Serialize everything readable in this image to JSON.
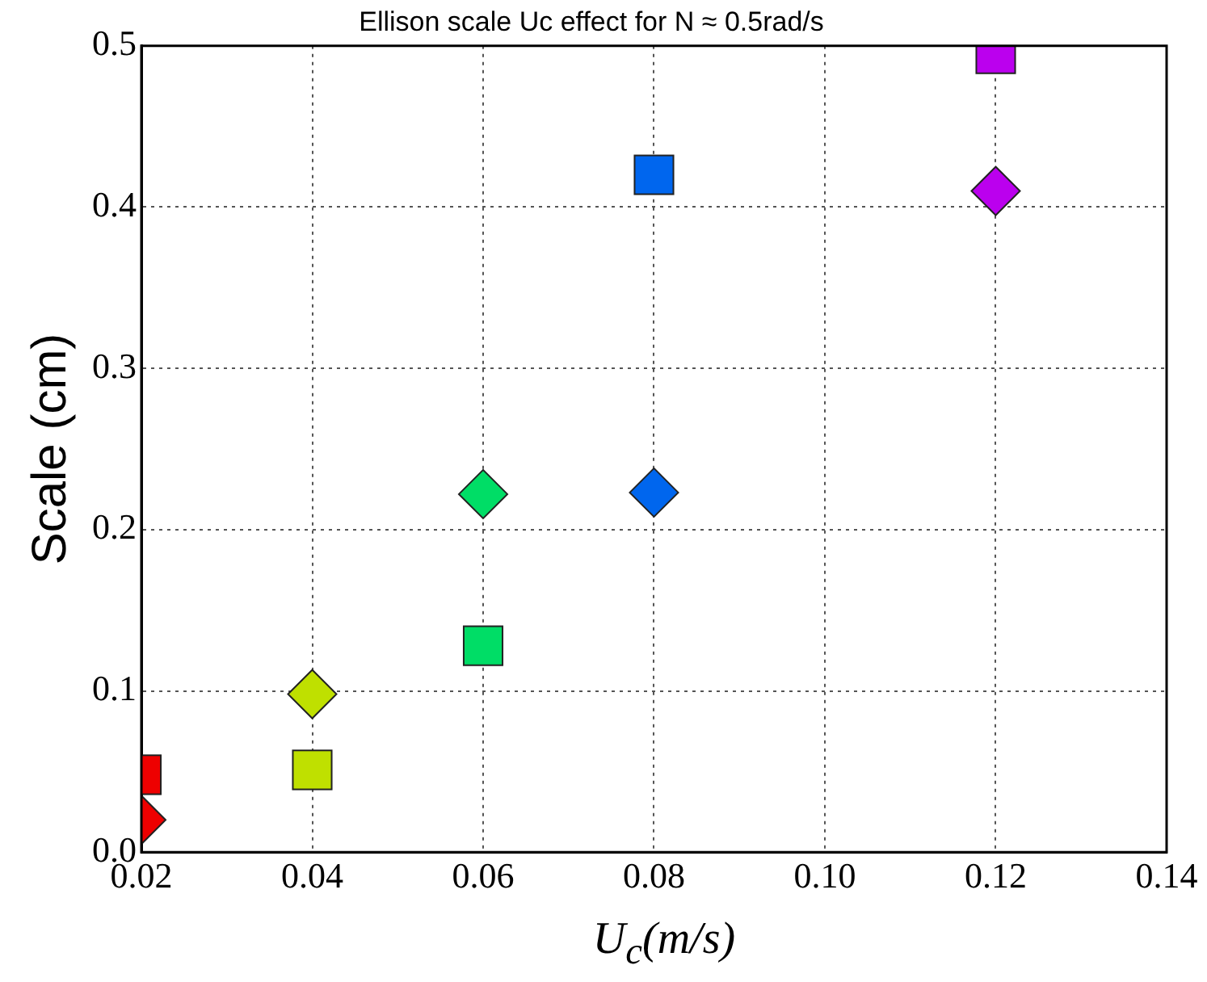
{
  "chart_data": {
    "type": "scatter",
    "title": "Ellison scale Uc effect for N ≈ 0.5rad/s",
    "xlabel": "U$_{c}$(m/s)",
    "ylabel": "Scale (cm)",
    "series": [
      {
        "marker": "square",
        "x": [
          0.02,
          0.04,
          0.06,
          0.08,
          0.12
        ],
        "values": [
          0.048,
          0.051,
          0.128,
          0.42,
          0.495
        ],
        "colors": [
          "#ee0000",
          "#bfe000",
          "#00dd66",
          "#0066ee",
          "#bb00ee"
        ]
      },
      {
        "marker": "diamond",
        "x": [
          0.02,
          0.04,
          0.06,
          0.08,
          0.12
        ],
        "values": [
          0.02,
          0.098,
          0.222,
          0.223,
          0.41
        ],
        "colors": [
          "#ee0000",
          "#bfe000",
          "#00dd66",
          "#0066ee",
          "#bb00ee"
        ]
      }
    ],
    "xlim": [
      0.02,
      0.14
    ],
    "xticks": [
      {
        "value": 0.02,
        "label": "0.02"
      },
      {
        "value": 0.04,
        "label": "0.04"
      },
      {
        "value": 0.06,
        "label": "0.06"
      },
      {
        "value": 0.08,
        "label": "0.08"
      },
      {
        "value": 0.1,
        "label": "0.10"
      },
      {
        "value": 0.12,
        "label": "0.12"
      },
      {
        "value": 0.14,
        "label": "0.14"
      }
    ],
    "ylim": [
      0,
      0.5
    ],
    "yticks": [
      {
        "value": 0,
        "label": "0.0"
      },
      0.1,
      0.2,
      0.3,
      0.4,
      0.5
    ],
    "grid": true,
    "line_style": "dotted",
    "legend": false
  }
}
